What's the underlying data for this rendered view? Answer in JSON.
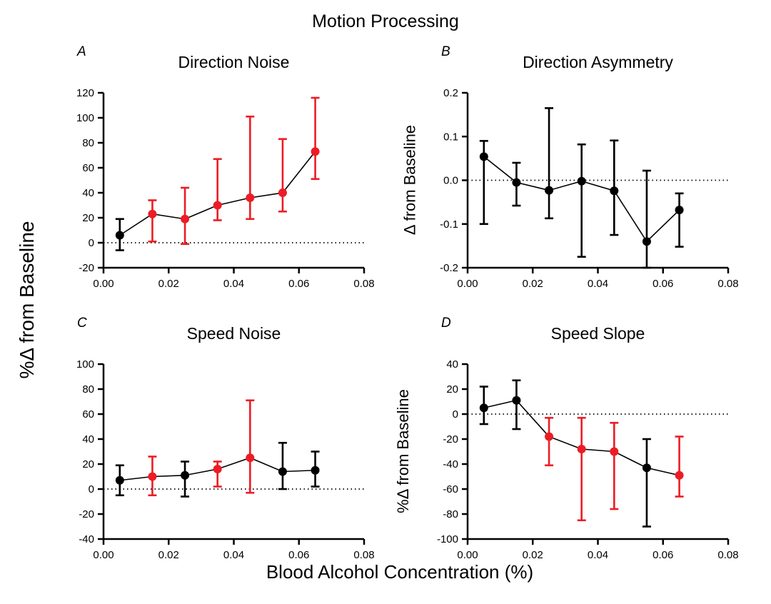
{
  "figure": {
    "title": "Motion Processing",
    "xlabel": "Blood Alcohol Concentration (%)",
    "shared_ylabel": "%Δ from Baseline"
  },
  "colors": {
    "black": "#000000",
    "red": "#ED1C24"
  },
  "chart_data": [
    {
      "id": "A",
      "panel_label": "A",
      "title": "Direction Noise",
      "type": "line",
      "ylabel": "",
      "x": [
        0.005,
        0.015,
        0.025,
        0.035,
        0.045,
        0.055,
        0.065
      ],
      "y": [
        6,
        23,
        19,
        30,
        36,
        40,
        73
      ],
      "err_lo": [
        -6,
        1,
        -1,
        18,
        19,
        25,
        51
      ],
      "err_hi": [
        19,
        34,
        44,
        67,
        101,
        83,
        116
      ],
      "point_colors": [
        "black",
        "red",
        "red",
        "red",
        "red",
        "red",
        "red"
      ],
      "xlim": [
        0,
        0.08
      ],
      "ylim": [
        -20,
        120
      ],
      "xticks": [
        0,
        0.02,
        0.04,
        0.06,
        0.08
      ],
      "xticklabels": [
        "0.00",
        "0.02",
        "0.04",
        "0.06",
        "0.08"
      ],
      "yticks": [
        -20,
        0,
        20,
        40,
        60,
        80,
        100,
        120
      ],
      "yticklabels": [
        "-20",
        "0",
        "20",
        "40",
        "60",
        "80",
        "100",
        "120"
      ],
      "baseline": 0
    },
    {
      "id": "B",
      "panel_label": "B",
      "title": "Direction Asymmetry",
      "type": "line",
      "ylabel": "Δ from Baseline",
      "x": [
        0.005,
        0.015,
        0.025,
        0.035,
        0.045,
        0.055,
        0.065
      ],
      "y": [
        0.054,
        -0.005,
        -0.023,
        -0.002,
        -0.024,
        -0.14,
        -0.068
      ],
      "err_lo": [
        -0.1,
        -0.058,
        -0.087,
        -0.175,
        -0.125,
        -0.2,
        -0.152
      ],
      "err_hi": [
        0.09,
        0.04,
        0.165,
        0.082,
        0.091,
        0.022,
        -0.03
      ],
      "point_colors": [
        "black",
        "black",
        "black",
        "black",
        "black",
        "black",
        "black"
      ],
      "xlim": [
        0,
        0.08
      ],
      "ylim": [
        -0.2,
        0.2
      ],
      "xticks": [
        0,
        0.02,
        0.04,
        0.06,
        0.08
      ],
      "xticklabels": [
        "0.00",
        "0.02",
        "0.04",
        "0.06",
        "0.08"
      ],
      "yticks": [
        -0.2,
        -0.1,
        0,
        0.1,
        0.2
      ],
      "yticklabels": [
        "-0.2",
        "-0.1",
        "0.0",
        "0.1",
        "0.2"
      ],
      "baseline": 0
    },
    {
      "id": "C",
      "panel_label": "C",
      "title": "Speed Noise",
      "type": "line",
      "ylabel": "",
      "x": [
        0.005,
        0.015,
        0.025,
        0.035,
        0.045,
        0.055,
        0.065
      ],
      "y": [
        7,
        10,
        11,
        16,
        25,
        14,
        15
      ],
      "err_lo": [
        -5,
        -5,
        -6,
        2,
        -3,
        0,
        2
      ],
      "err_hi": [
        19,
        26,
        22,
        22,
        71,
        37,
        30
      ],
      "point_colors": [
        "black",
        "red",
        "black",
        "red",
        "red",
        "black",
        "black"
      ],
      "xlim": [
        0,
        0.08
      ],
      "ylim": [
        -40,
        100
      ],
      "xticks": [
        0,
        0.02,
        0.04,
        0.06,
        0.08
      ],
      "xticklabels": [
        "0.00",
        "0.02",
        "0.04",
        "0.06",
        "0.08"
      ],
      "yticks": [
        -40,
        -20,
        0,
        20,
        40,
        60,
        80,
        100
      ],
      "yticklabels": [
        "-40",
        "-20",
        "0",
        "20",
        "40",
        "60",
        "80",
        "100"
      ],
      "baseline": 0
    },
    {
      "id": "D",
      "panel_label": "D",
      "title": "Speed Slope",
      "type": "line",
      "ylabel": "%Δ from Baseline",
      "x": [
        0.005,
        0.015,
        0.025,
        0.035,
        0.045,
        0.055,
        0.065
      ],
      "y": [
        5,
        11,
        -18,
        -28,
        -30,
        -43,
        -49
      ],
      "err_lo": [
        -8,
        -12,
        -41,
        -85,
        -76,
        -90,
        -66
      ],
      "err_hi": [
        22,
        27,
        -3,
        -3,
        -7,
        -20,
        -18
      ],
      "point_colors": [
        "black",
        "black",
        "red",
        "red",
        "red",
        "black",
        "red"
      ],
      "xlim": [
        0,
        0.08
      ],
      "ylim": [
        -100,
        40
      ],
      "xticks": [
        0,
        0.02,
        0.04,
        0.06,
        0.08
      ],
      "xticklabels": [
        "0.00",
        "0.02",
        "0.04",
        "0.06",
        "0.08"
      ],
      "yticks": [
        -100,
        -80,
        -60,
        -40,
        -20,
        0,
        20,
        40
      ],
      "yticklabels": [
        "-100",
        "-80",
        "-60",
        "-40",
        "-20",
        "0",
        "20",
        "40"
      ],
      "baseline": 0
    }
  ]
}
